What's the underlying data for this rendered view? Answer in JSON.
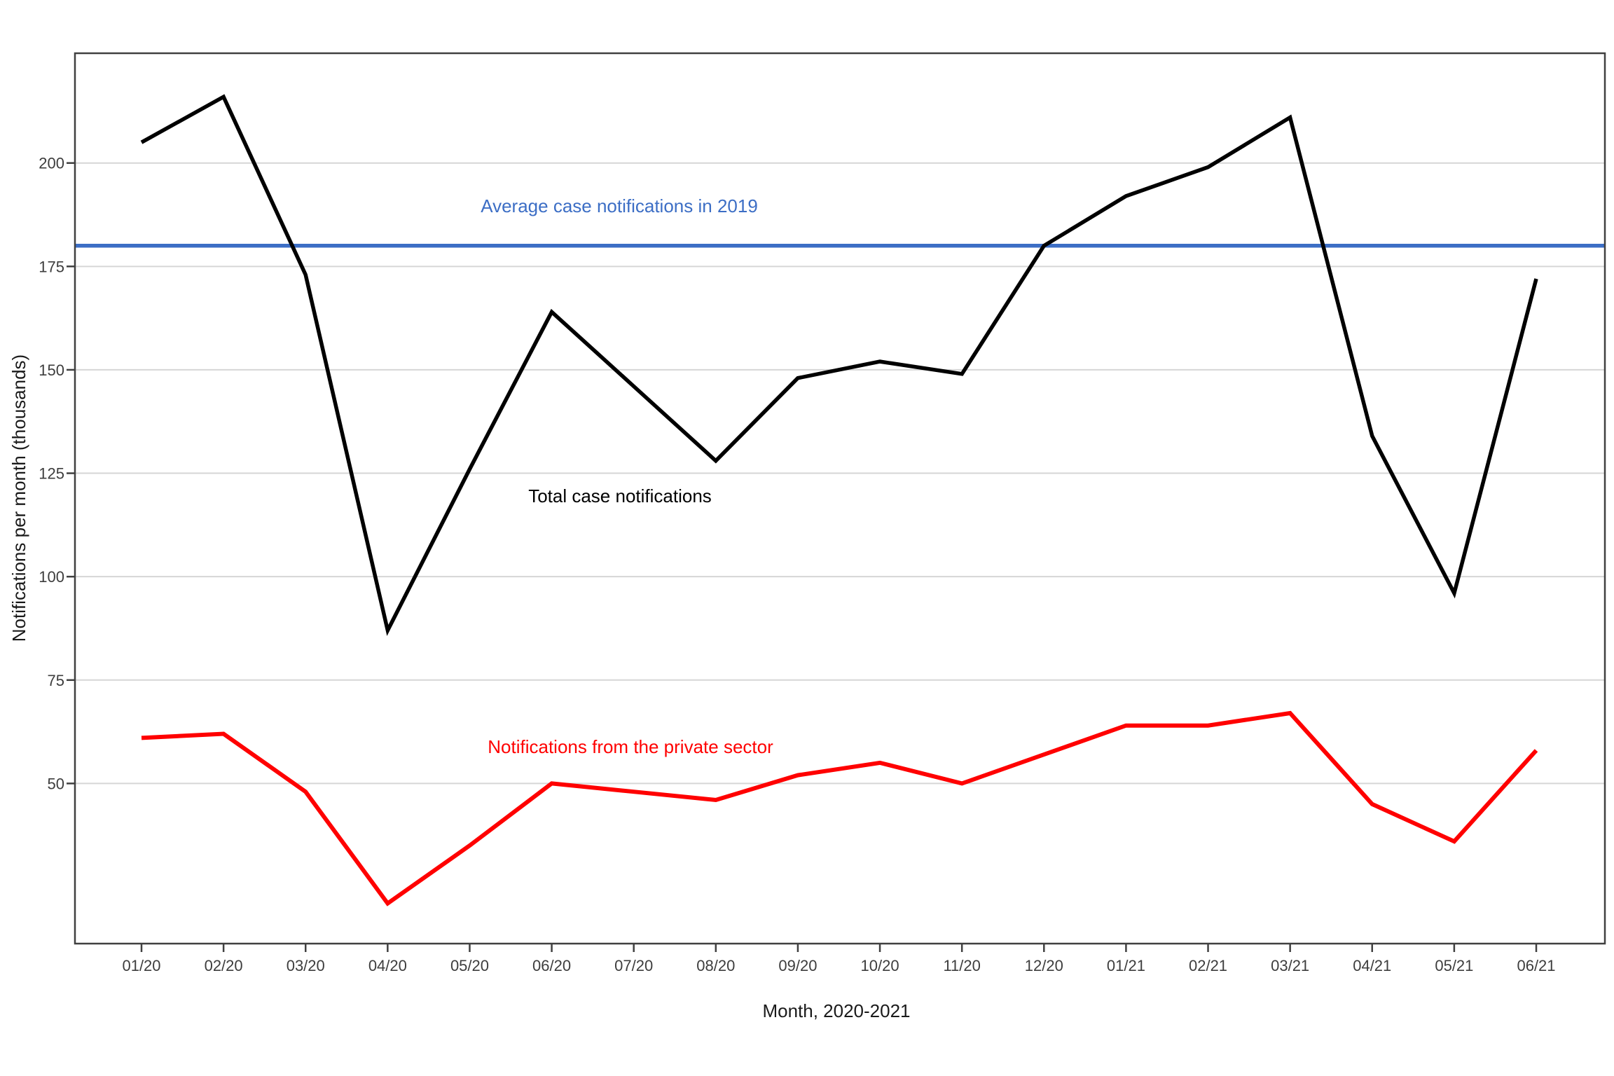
{
  "chart_data": {
    "type": "line",
    "title": "",
    "xlabel": "Month, 2020-2021",
    "ylabel": "Notifications per month (thousands)",
    "x": [
      "01/20",
      "02/20",
      "03/20",
      "04/20",
      "05/20",
      "06/20",
      "07/20",
      "08/20",
      "09/20",
      "10/20",
      "11/20",
      "12/20",
      "01/21",
      "02/21",
      "03/21",
      "04/21",
      "05/21",
      "06/21"
    ],
    "yticks": [
      50,
      75,
      100,
      125,
      150,
      175,
      200
    ],
    "ylim": [
      11,
      227
    ],
    "grid": "horizontal-only",
    "legend_position": "inline-annotations",
    "series": [
      {
        "name": "Total case notifications",
        "color": "#000000",
        "values": [
          205,
          216,
          173,
          87,
          126,
          164,
          146,
          128,
          148,
          152,
          149,
          180,
          192,
          199,
          211,
          134,
          96,
          172
        ]
      },
      {
        "name": "Notifications from the private sector",
        "color": "#ff0000",
        "values": [
          61,
          62,
          48,
          21,
          35,
          50,
          48,
          46,
          52,
          55,
          50,
          57,
          64,
          64,
          67,
          45,
          36,
          58
        ]
      }
    ],
    "reference_line": {
      "label": "Average case notifications in 2019",
      "value": 180,
      "color": "#3c6ec5"
    },
    "panel": {
      "background": "#ffffff",
      "border_color": "#404040",
      "gridline_color": "#d6d6d6",
      "tick_color": "#404040"
    }
  }
}
